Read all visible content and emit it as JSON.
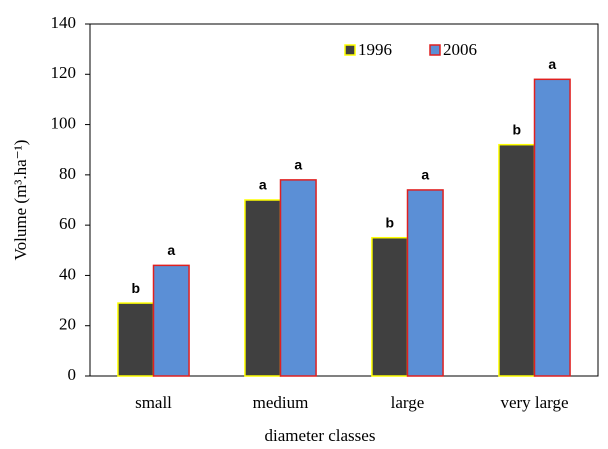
{
  "chart_data": {
    "type": "bar",
    "x_label": "diameter classes",
    "y_label": "Volume (m³.ha⁻¹)",
    "categories": [
      "small",
      "medium",
      "large",
      "very large"
    ],
    "series": [
      {
        "name": "1996",
        "color": "#404040",
        "edge_color": "#ffff00",
        "values": [
          29,
          70,
          55,
          92
        ],
        "significance_labels": [
          "b",
          "a",
          "b",
          "b"
        ]
      },
      {
        "name": "2006",
        "color": "#5b8fd6",
        "edge_color": "#e02020",
        "values": [
          44,
          78,
          74,
          118
        ],
        "significance_labels": [
          "a",
          "a",
          "a",
          "a"
        ]
      }
    ],
    "ylim": [
      0,
      140
    ],
    "yticks": [
      0,
      20,
      40,
      60,
      80,
      100,
      120,
      140
    ],
    "grid": false,
    "legend": "top"
  }
}
